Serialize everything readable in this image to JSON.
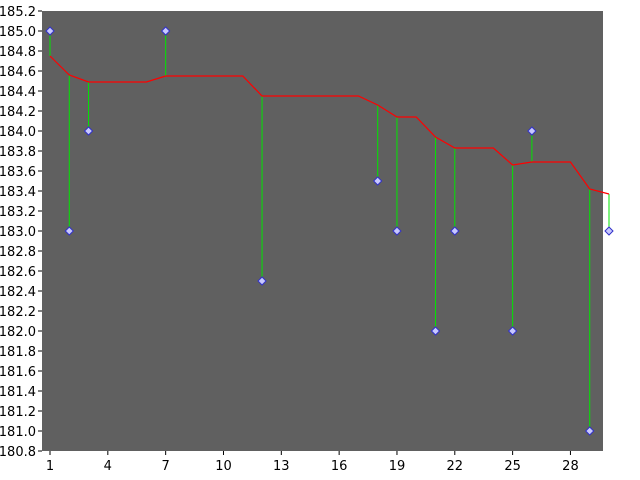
{
  "chart_data": {
    "type": "line",
    "title": "",
    "xlabel": "",
    "ylabel": "",
    "xlim": [
      1,
      30
    ],
    "ylim": [
      180.8,
      185.2
    ],
    "x_ticks": [
      1,
      4,
      7,
      10,
      13,
      16,
      19,
      22,
      25,
      28
    ],
    "x_tick_labels": [
      "1",
      "4",
      "7",
      "10",
      "13",
      "16",
      "19",
      "22",
      "25",
      "28"
    ],
    "y_ticks": [
      180.8,
      181.0,
      181.2,
      181.4,
      181.6,
      181.8,
      182.0,
      182.2,
      182.4,
      182.6,
      182.8,
      183.0,
      183.2,
      183.4,
      183.6,
      183.8,
      184.0,
      184.2,
      184.4,
      184.6,
      184.8,
      185.0,
      185.2
    ],
    "y_tick_labels": [
      "180.8",
      "181.0",
      "181.2",
      "181.4",
      "181.6",
      "181.8",
      "182.0",
      "182.2",
      "182.4",
      "182.6",
      "182.8",
      "183.0",
      "183.2",
      "183.4",
      "183.6",
      "183.8",
      "184.0",
      "184.2",
      "184.4",
      "184.6",
      "184.8",
      "185.0",
      "185.2"
    ],
    "grid": false,
    "legend": "none",
    "series": [
      {
        "kind": "points",
        "x": [
          1,
          2,
          3,
          7,
          12,
          18,
          19,
          21,
          22,
          25,
          26,
          29,
          30
        ],
        "y": [
          185.0,
          183.0,
          184.0,
          185.0,
          182.5,
          183.5,
          183.0,
          182.0,
          183.0,
          182.0,
          184.0,
          181.0,
          183.0
        ]
      },
      {
        "kind": "line",
        "x": [
          1,
          2,
          3,
          4,
          5,
          6,
          7,
          8,
          9,
          10,
          11,
          12,
          13,
          14,
          15,
          16,
          17,
          18,
          19,
          20,
          21,
          22,
          23,
          24,
          25,
          26,
          27,
          28,
          29,
          30
        ],
        "y": [
          184.75,
          184.56,
          184.49,
          184.49,
          184.49,
          184.49,
          184.55,
          184.55,
          184.55,
          184.55,
          184.55,
          184.35,
          184.35,
          184.35,
          184.35,
          184.35,
          184.35,
          184.26,
          184.14,
          184.14,
          183.94,
          183.83,
          183.83,
          183.83,
          183.66,
          183.69,
          183.69,
          183.69,
          183.42,
          183.37
        ]
      }
    ],
    "colors": {
      "background": "#ffffff",
      "plot_area": "#606060",
      "points_fill": "#c8c8ff",
      "points_stroke": "#3232c8",
      "line": "#ff0000",
      "residual": "#00e600",
      "axis_text": "#000000"
    }
  }
}
